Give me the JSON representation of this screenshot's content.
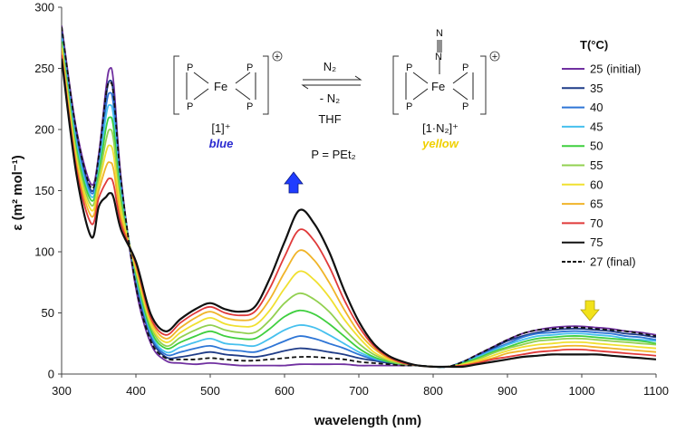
{
  "chart_data": {
    "type": "line",
    "xlabel": "wavelength (nm)",
    "ylabel": "ε (m² mol⁻¹)",
    "xlim": [
      300,
      1100
    ],
    "ylim": [
      0,
      300
    ],
    "xticks": [
      "300",
      "400",
      "500",
      "600",
      "700",
      "800",
      "900",
      "1000",
      "1100"
    ],
    "yticks": [
      "0",
      "50",
      "100",
      "150",
      "200",
      "250",
      "300"
    ],
    "grid": false,
    "legend": {
      "title": "T(°C)",
      "placement": "right",
      "entries": [
        "25 (initial)",
        "35",
        "40",
        "45",
        "50",
        "55",
        "60",
        "65",
        "70",
        "75",
        "27 (final)"
      ]
    },
    "x": [
      300,
      320,
      340,
      350,
      360,
      365,
      370,
      380,
      400,
      420,
      440,
      460,
      480,
      500,
      520,
      540,
      560,
      580,
      600,
      620,
      640,
      660,
      680,
      700,
      720,
      740,
      760,
      780,
      800,
      820,
      840,
      860,
      880,
      900,
      920,
      940,
      960,
      980,
      1000,
      1020,
      1040,
      1060,
      1080,
      1100
    ],
    "series": [
      {
        "name": "25 (initial)",
        "color": "#7030a0",
        "dashed": false,
        "values": [
          285,
          200,
          155,
          180,
          235,
          250,
          238,
          160,
          70,
          25,
          11,
          9,
          8,
          9,
          8,
          7,
          7,
          7,
          7,
          8,
          8,
          8,
          8,
          7,
          7,
          7,
          7,
          7,
          6,
          6,
          10,
          16,
          22,
          28,
          33,
          36,
          38,
          39,
          39,
          38,
          37,
          35,
          34,
          32
        ]
      },
      {
        "name": "35",
        "color": "#1f3c88",
        "dashed": false,
        "values": [
          280,
          195,
          150,
          175,
          228,
          240,
          228,
          155,
          75,
          30,
          14,
          14,
          16,
          18,
          16,
          15,
          14,
          16,
          19,
          21,
          20,
          18,
          16,
          13,
          11,
          9,
          8,
          7,
          6,
          6,
          10,
          15,
          21,
          27,
          31,
          34,
          36,
          37,
          37,
          36,
          35,
          33,
          32,
          30
        ]
      },
      {
        "name": "40",
        "color": "#2e75d6",
        "dashed": false,
        "values": [
          278,
          192,
          148,
          172,
          220,
          230,
          219,
          152,
          78,
          32,
          16,
          18,
          21,
          23,
          20,
          19,
          18,
          22,
          27,
          31,
          29,
          25,
          21,
          16,
          12,
          10,
          8,
          7,
          6,
          6,
          10,
          15,
          20,
          25,
          30,
          33,
          34,
          35,
          35,
          34,
          33,
          31,
          30,
          28
        ]
      },
      {
        "name": "45",
        "color": "#46c0ee",
        "dashed": false,
        "values": [
          275,
          188,
          145,
          168,
          212,
          220,
          210,
          148,
          80,
          34,
          18,
          22,
          26,
          29,
          25,
          24,
          23,
          29,
          36,
          40,
          38,
          32,
          25,
          18,
          13,
          10,
          8,
          7,
          6,
          6,
          9,
          14,
          19,
          24,
          28,
          31,
          32,
          33,
          33,
          32,
          31,
          29,
          28,
          27
        ]
      },
      {
        "name": "50",
        "color": "#3fcf3f",
        "dashed": false,
        "values": [
          272,
          184,
          142,
          164,
          202,
          210,
          201,
          143,
          82,
          36,
          21,
          26,
          31,
          35,
          31,
          29,
          29,
          37,
          47,
          52,
          49,
          41,
          31,
          21,
          14,
          10,
          8,
          7,
          6,
          6,
          9,
          13,
          18,
          22,
          26,
          29,
          30,
          31,
          31,
          30,
          29,
          28,
          27,
          25
        ]
      },
      {
        "name": "55",
        "color": "#92d050",
        "dashed": false,
        "values": [
          270,
          180,
          138,
          160,
          192,
          200,
          191,
          138,
          84,
          39,
          23,
          30,
          36,
          40,
          36,
          34,
          34,
          44,
          58,
          66,
          61,
          51,
          37,
          25,
          16,
          11,
          8,
          7,
          6,
          6,
          8,
          12,
          17,
          21,
          24,
          27,
          28,
          29,
          29,
          28,
          27,
          26,
          25,
          24
        ]
      },
      {
        "name": "60",
        "color": "#f0e030",
        "dashed": false,
        "values": [
          267,
          176,
          134,
          155,
          182,
          187,
          179,
          133,
          86,
          41,
          26,
          34,
          41,
          46,
          41,
          39,
          40,
          52,
          70,
          84,
          77,
          63,
          45,
          30,
          18,
          12,
          9,
          7,
          6,
          6,
          8,
          11,
          15,
          19,
          22,
          24,
          25,
          26,
          26,
          25,
          24,
          23,
          22,
          21
        ]
      },
      {
        "name": "65",
        "color": "#f0b429",
        "dashed": false,
        "values": [
          264,
          172,
          129,
          150,
          170,
          173,
          167,
          128,
          88,
          44,
          29,
          38,
          46,
          51,
          46,
          44,
          46,
          61,
          83,
          101,
          93,
          75,
          53,
          34,
          21,
          13,
          9,
          7,
          6,
          6,
          7,
          10,
          13,
          17,
          19,
          21,
          22,
          23,
          23,
          22,
          21,
          20,
          19,
          18
        ]
      },
      {
        "name": "70",
        "color": "#e03a3a",
        "dashed": false,
        "values": [
          261,
          168,
          123,
          144,
          157,
          160,
          155,
          123,
          90,
          46,
          32,
          42,
          50,
          55,
          50,
          48,
          51,
          70,
          96,
          118,
          109,
          88,
          61,
          39,
          23,
          14,
          9,
          7,
          6,
          6,
          7,
          9,
          12,
          14,
          16,
          18,
          19,
          20,
          20,
          19,
          18,
          17,
          16,
          15
        ]
      },
      {
        "name": "75",
        "color": "#111111",
        "dashed": false,
        "values": [
          258,
          163,
          112,
          137,
          145,
          148,
          144,
          118,
          92,
          49,
          35,
          45,
          53,
          58,
          53,
          51,
          55,
          78,
          108,
          134,
          123,
          100,
          69,
          43,
          25,
          15,
          10,
          7,
          6,
          6,
          6,
          8,
          10,
          12,
          14,
          15,
          16,
          16,
          16,
          16,
          15,
          14,
          13,
          12
        ]
      },
      {
        "name": "27 (final)",
        "color": "#111111",
        "dashed": true,
        "values": [
          284,
          198,
          152,
          178,
          230,
          238,
          228,
          158,
          72,
          27,
          13,
          12,
          12,
          13,
          12,
          11,
          11,
          12,
          13,
          14,
          14,
          13,
          12,
          10,
          9,
          8,
          7,
          7,
          6,
          6,
          10,
          16,
          22,
          28,
          33,
          36,
          37,
          38,
          38,
          37,
          36,
          35,
          33,
          31
        ]
      }
    ]
  },
  "scheme": {
    "left_complex_label": "[1]⁺",
    "left_color_word": "blue",
    "right_complex_label": "[1·N₂]⁺",
    "right_color_word": "yellow",
    "forward_reagent": "N₂",
    "reverse_reagent": "- N₂",
    "solvent": "THF",
    "ligand_definition": "P = PEt₂",
    "metal": "Fe",
    "phosphorus": "P",
    "charge": "+",
    "dinitrogen_top": "N",
    "dinitrogen_bottom": "N",
    "colors": {
      "blue_word": "#2a2ad0",
      "yellow_word": "#f0d000",
      "up_arrow": "#1f3cff",
      "down_arrow": "#f2e21a"
    }
  }
}
